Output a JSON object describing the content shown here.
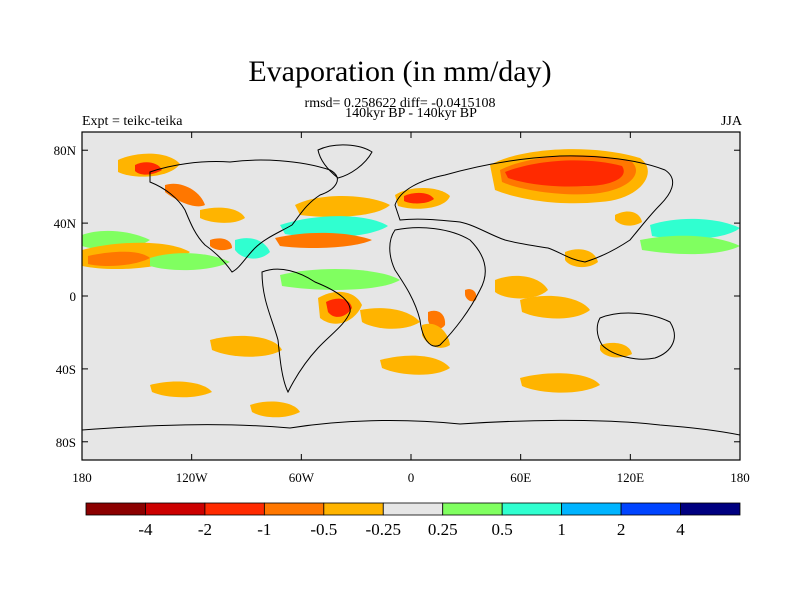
{
  "header": {
    "title": "Evaporation (in mm/day)",
    "stats": "rmsd= 0.258622  diff= -0.0415108",
    "period": "140kyr BP - 140kyr BP",
    "experiment": "Expt = teikc-teika",
    "season": "JJA"
  },
  "map": {
    "lon_range": [
      -180,
      180
    ],
    "lat_range": [
      -90,
      90
    ],
    "background_color": "#e6e6e6",
    "x_tick_labels": [
      "180",
      "120W",
      "60W",
      "0",
      "60E",
      "120E",
      "180"
    ],
    "y_tick_labels": [
      "80N",
      "40N",
      "0",
      "40S",
      "80S"
    ]
  },
  "colorbar": {
    "colors": [
      "#8b0000",
      "#cc0000",
      "#ff2a00",
      "#ff7700",
      "#ffb400",
      "#e6e6e6",
      "#80ff60",
      "#30ffd0",
      "#00b4ff",
      "#0044ff",
      "#000080"
    ],
    "labels": [
      "-4",
      "-2",
      "-1",
      "-0.5",
      "-0.25",
      "0.25",
      "0.5",
      "1",
      "2",
      "4"
    ]
  }
}
